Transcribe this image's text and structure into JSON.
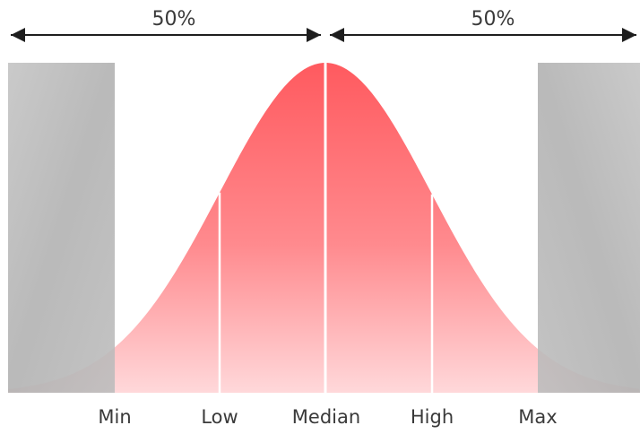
{
  "header": {
    "left_share": "50%",
    "right_share": "50%"
  },
  "axis": {
    "labels": [
      "Min",
      "Low",
      "Median",
      "High",
      "Max"
    ]
  },
  "colors": {
    "curve_top": "#ff5a5f",
    "curve_bottom": "#ffd6d8",
    "excluded_region": "#b4b4b4",
    "divider_line": "#ffffff",
    "arrow": "#1e1e1e",
    "text": "#3a3a3a"
  }
}
